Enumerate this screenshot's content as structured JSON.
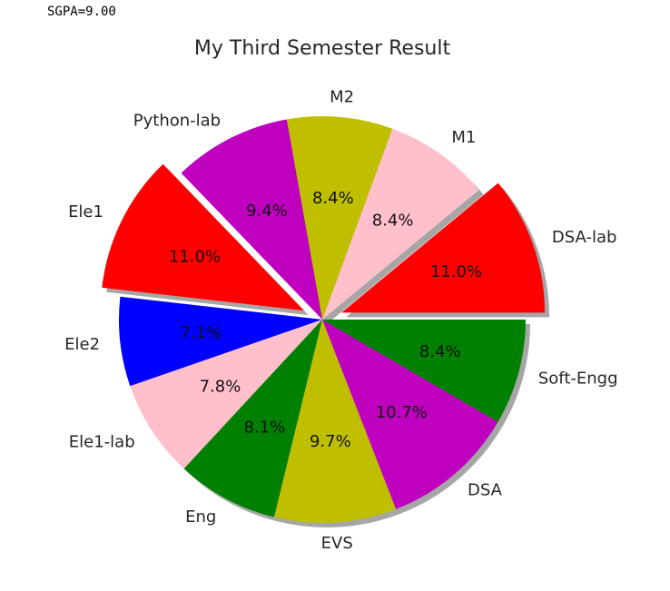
{
  "output": {
    "text": "SGPA=9.00"
  },
  "chart_data": {
    "type": "pie",
    "title": "My Third Semester Result",
    "start_angle_deg": 0,
    "direction": "counterclockwise",
    "shadow": true,
    "slices": [
      {
        "label": "DSA-lab",
        "value": 11.0,
        "pct_text": "11.0%",
        "color": "#ff0000",
        "explode": 0.1
      },
      {
        "label": "M1",
        "value": 8.4,
        "pct_text": "8.4%",
        "color": "#ffc0cb",
        "explode": 0
      },
      {
        "label": "M2",
        "value": 8.4,
        "pct_text": "8.4%",
        "color": "#bfbf00",
        "explode": 0
      },
      {
        "label": "Python-lab",
        "value": 9.4,
        "pct_text": "9.4%",
        "color": "#bf00bf",
        "explode": 0
      },
      {
        "label": "Ele1",
        "value": 11.0,
        "pct_text": "11.0%",
        "color": "#ff0000",
        "explode": 0.1
      },
      {
        "label": "Ele2",
        "value": 7.1,
        "pct_text": "7.1%",
        "color": "#0000ff",
        "explode": 0
      },
      {
        "label": "Ele1-lab",
        "value": 7.8,
        "pct_text": "7.8%",
        "color": "#ffc0cb",
        "explode": 0
      },
      {
        "label": "Eng",
        "value": 8.1,
        "pct_text": "8.1%",
        "color": "#008000",
        "explode": 0
      },
      {
        "label": "EVS",
        "value": 9.7,
        "pct_text": "9.7%",
        "color": "#bfbf00",
        "explode": 0
      },
      {
        "label": "DSA",
        "value": 10.7,
        "pct_text": "10.7%",
        "color": "#bf00bf",
        "explode": 0
      },
      {
        "label": "Soft-Engg",
        "value": 8.4,
        "pct_text": "8.4%",
        "color": "#008000",
        "explode": 0
      }
    ]
  }
}
